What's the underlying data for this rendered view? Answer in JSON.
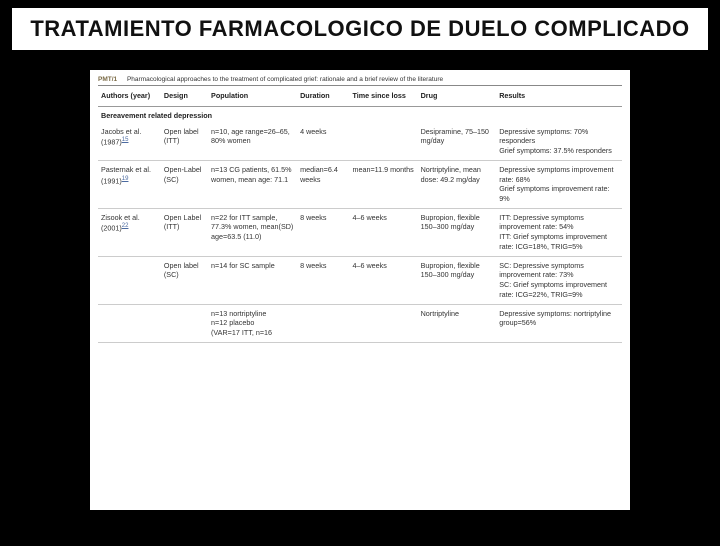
{
  "title": "TRATAMIENTO FARMACOLOGICO DE DUELO COMPLICADO",
  "table": {
    "caption_label": "PMT/1",
    "caption_text": "Pharmacological approaches to the treatment of complicated grief: rationale and a brief review of the literature",
    "columns": [
      "Authors (year)",
      "Design",
      "Population",
      "Duration",
      "Time since loss",
      "Drug",
      "Results"
    ],
    "section": "Bereavement related depression",
    "rows": [
      {
        "authors_pre": "Jacobs et al. (1987)",
        "authors_ref": "15",
        "design": "Open label (ITT)",
        "population": "n=10, age range=26–65, 80% women",
        "duration": "4 weeks",
        "time": "",
        "drug": "Desipramine, 75–150 mg/day",
        "results": "Depressive symptoms: 70% responders\nGrief symptoms: 37.5% responders"
      },
      {
        "authors_pre": "Pasternak et al. (1991)",
        "authors_ref": "19",
        "design": "Open-Label (SC)",
        "population": "n=13 CG patients, 61.5% women, mean age: 71.1",
        "duration": "median=6.4 weeks",
        "time": "mean=11.9 months",
        "drug": "Nortriptyline, mean dose: 49.2 mg/day",
        "results": "Depressive symptoms improvement rate: 68%\nGrief symptoms improvement rate: 9%"
      },
      {
        "authors_pre": "Zisook et al. (2001)",
        "authors_ref": "22",
        "design": "Open Label (ITT)",
        "population": "n=22 for ITT sample, 77.3% women, mean(SD) age=63.5 (11.0)",
        "duration": "8 weeks",
        "time": "4–6 weeks",
        "drug": "Bupropion, flexible 150–300 mg/day",
        "results": "ITT: Depressive symptoms improvement rate: 54%\nITT: Grief symptoms improvement rate: ICG=18%, TRIG=5%"
      },
      {
        "authors_pre": "",
        "authors_ref": "",
        "design": "Open label (SC)",
        "population": "n=14 for SC sample",
        "duration": "8 weeks",
        "time": "4–6 weeks",
        "drug": "Bupropion, flexible 150–300 mg/day",
        "results": "SC: Depressive symptoms improvement rate: 73%\nSC: Grief symptoms improvement rate: ICG=22%, TRIG=9%"
      },
      {
        "authors_pre": "",
        "authors_ref": "",
        "design": "",
        "population": "n=13 nortriptyline\nn=12 placebo\n(VAR=17 ITT, n=16",
        "duration": "",
        "time": "",
        "drug": "Nortriptyline",
        "results": "Depressive symptoms: nortriptyline group=56%"
      }
    ]
  },
  "colors": {
    "page_bg": "#000000",
    "panel_bg": "#ffffff",
    "title_text": "#111111",
    "link": "#4b6aa0",
    "caption_label": "#7a6a45"
  }
}
